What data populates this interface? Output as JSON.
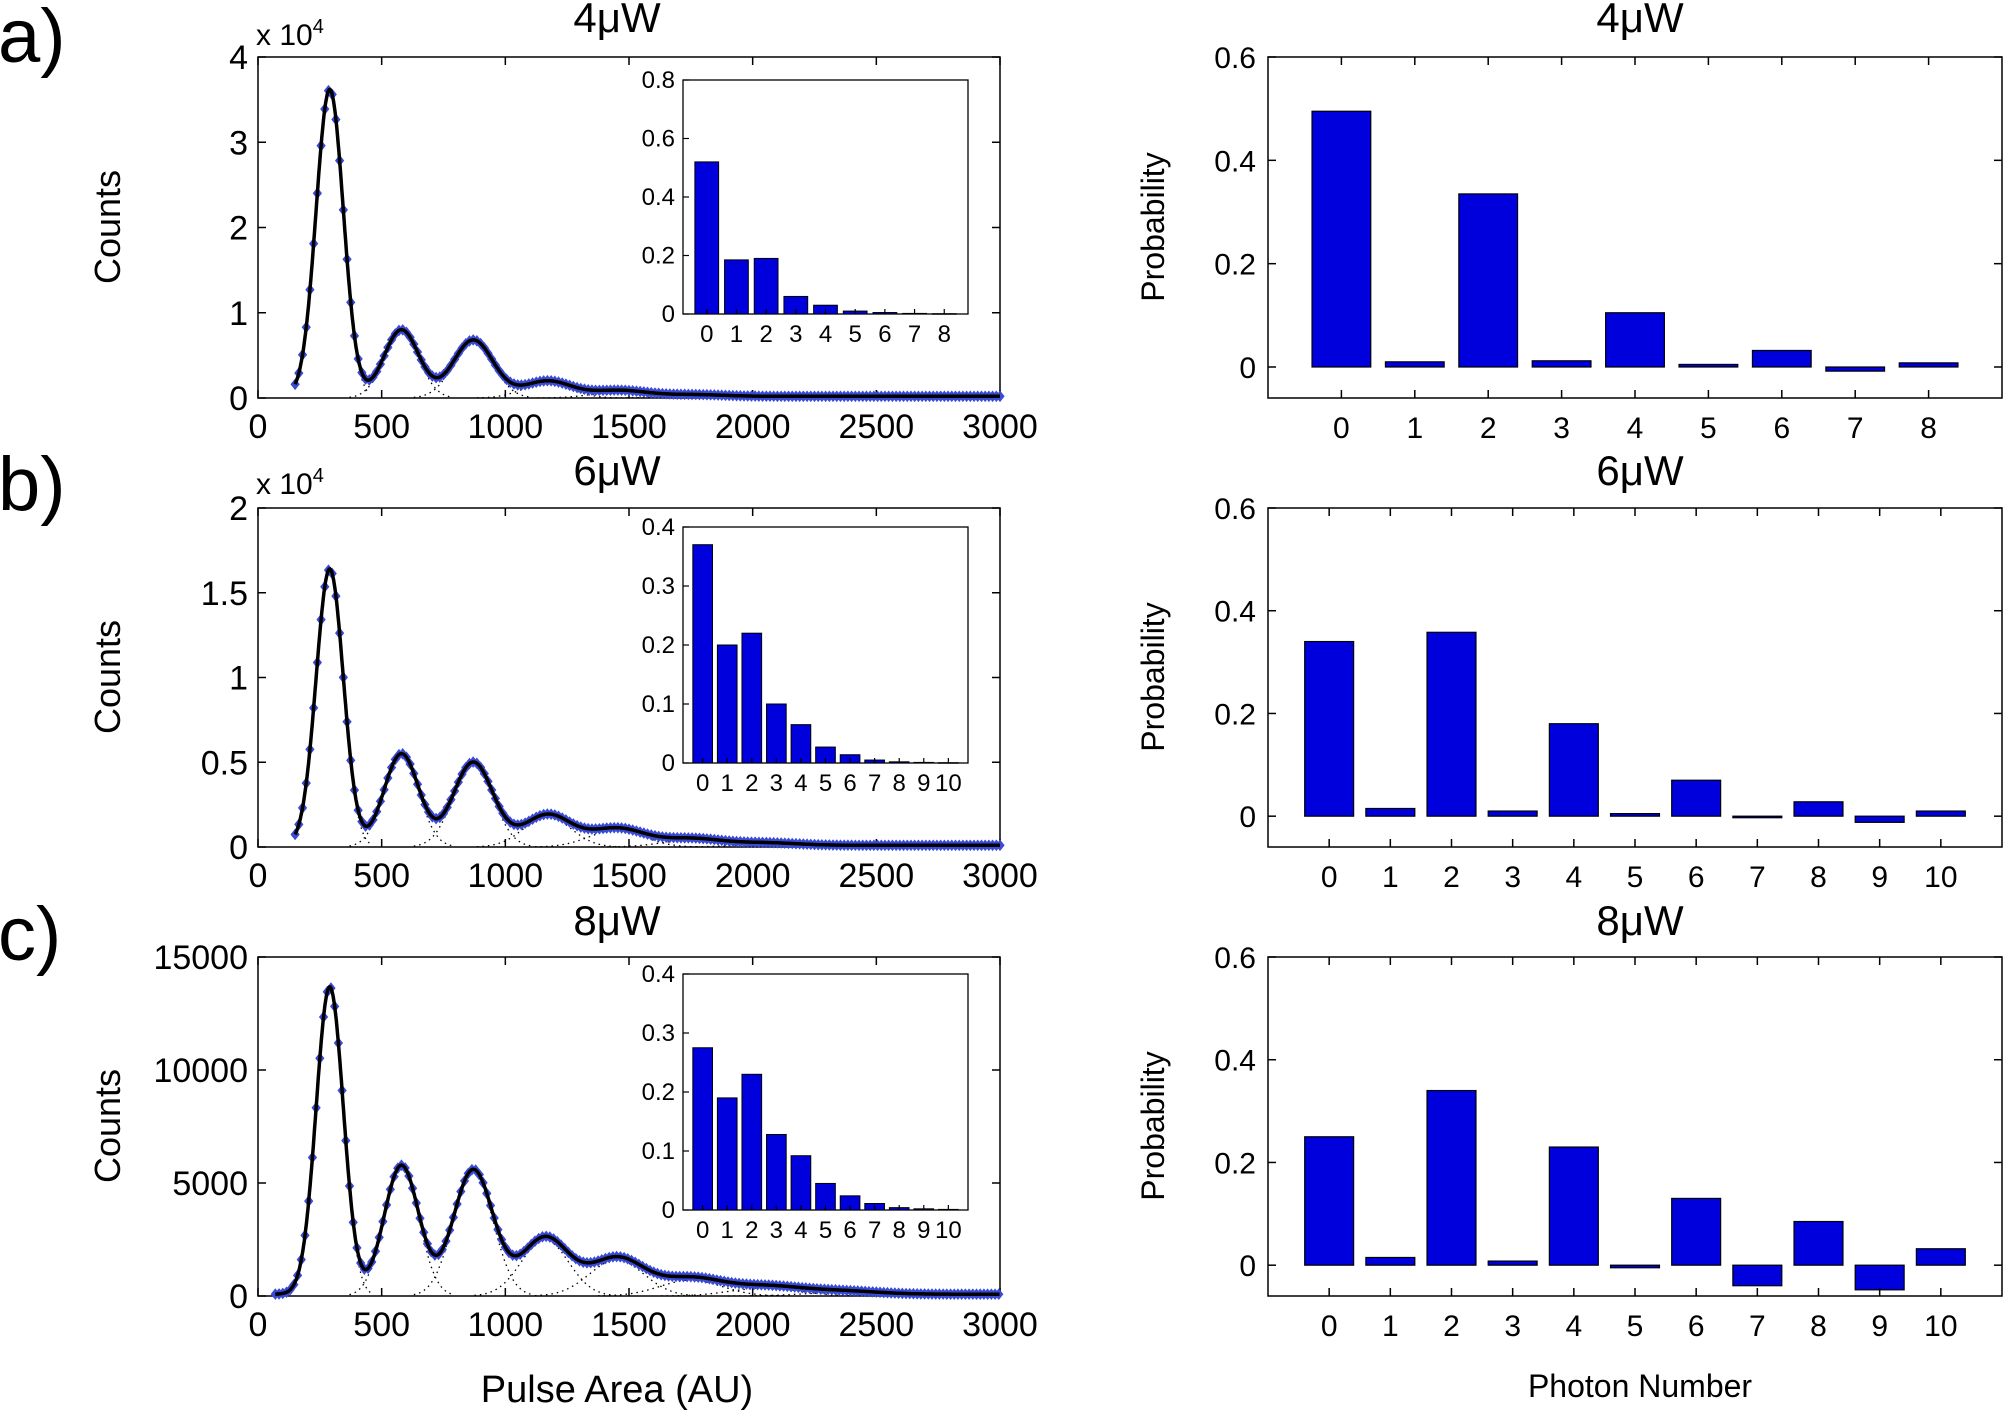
{
  "colors": {
    "bar": "#0000dd",
    "marker": "#3a4bd6",
    "fit_line": "#000000",
    "axis": "#000000"
  },
  "figure": {
    "panel_labels": [
      "a)",
      "b)",
      "c)"
    ],
    "left_xlabel": "Pulse Area (AU)",
    "left_ylabel": "Counts",
    "right_xlabel": "Photon Number",
    "right_ylabel": "Probability"
  },
  "chart_data": [
    {
      "id": "a_hist",
      "type": "line",
      "title": "4μW",
      "xlabel": "",
      "ylabel": "Counts",
      "exponent_label": "x 10",
      "exponent_power": "4",
      "xlim": [
        0,
        3000
      ],
      "ylim": [
        0,
        4
      ],
      "xticks": [
        0,
        500,
        1000,
        1500,
        2000,
        2500,
        3000
      ],
      "yticks": [
        0,
        1,
        2,
        3,
        4
      ],
      "x_start": 150,
      "peaks": [
        {
          "center": 290,
          "height": 3.6,
          "width": 55
        },
        {
          "center": 580,
          "height": 0.78,
          "width": 70
        },
        {
          "center": 870,
          "height": 0.66,
          "width": 80
        },
        {
          "center": 1170,
          "height": 0.18,
          "width": 95
        },
        {
          "center": 1460,
          "height": 0.07,
          "width": 110
        },
        {
          "center": 1760,
          "height": 0.02,
          "width": 120
        }
      ],
      "baseline": 0.02,
      "inset": {
        "type": "bar",
        "categories": [
          "0",
          "1",
          "2",
          "3",
          "4",
          "5",
          "6",
          "7",
          "8"
        ],
        "values": [
          0.52,
          0.185,
          0.19,
          0.06,
          0.03,
          0.01,
          0.005,
          0.002,
          0.001
        ],
        "ylim": [
          0,
          0.8
        ],
        "yticks": [
          "0",
          "0.2",
          "0.4",
          "0.6",
          "0.8"
        ]
      }
    },
    {
      "id": "a_prob",
      "type": "bar",
      "title": "4μW",
      "xlabel": "",
      "ylabel": "Probability",
      "categories": [
        "0",
        "1",
        "2",
        "3",
        "4",
        "5",
        "6",
        "7",
        "8"
      ],
      "values": [
        0.495,
        0.01,
        0.335,
        0.012,
        0.105,
        0.005,
        0.032,
        -0.008,
        0.008
      ],
      "ylim": [
        -0.06,
        0.6
      ],
      "yticks": [
        "0",
        "0.2",
        "0.4",
        "0.6"
      ]
    },
    {
      "id": "b_hist",
      "type": "line",
      "title": "6μW",
      "xlabel": "",
      "ylabel": "Counts",
      "exponent_label": "x 10",
      "exponent_power": "4",
      "xlim": [
        0,
        3000
      ],
      "ylim": [
        0,
        2
      ],
      "xticks": [
        0,
        500,
        1000,
        1500,
        2000,
        2500,
        3000
      ],
      "yticks": [
        0,
        0.5,
        1,
        1.5,
        2
      ],
      "ytick_labels": [
        "0",
        "0.5",
        "1",
        "1.5",
        "2"
      ],
      "x_start": 150,
      "peaks": [
        {
          "center": 290,
          "height": 1.63,
          "width": 55
        },
        {
          "center": 580,
          "height": 0.54,
          "width": 70
        },
        {
          "center": 870,
          "height": 0.49,
          "width": 80
        },
        {
          "center": 1170,
          "height": 0.18,
          "width": 95
        },
        {
          "center": 1450,
          "height": 0.1,
          "width": 110
        },
        {
          "center": 1750,
          "height": 0.04,
          "width": 120
        },
        {
          "center": 2050,
          "height": 0.015,
          "width": 130
        }
      ],
      "baseline": 0.01,
      "inset": {
        "type": "bar",
        "categories": [
          "0",
          "1",
          "2",
          "3",
          "4",
          "5",
          "6",
          "7",
          "8",
          "9",
          "10"
        ],
        "values": [
          0.37,
          0.2,
          0.22,
          0.1,
          0.065,
          0.027,
          0.014,
          0.005,
          0.002,
          0.001,
          0.0005
        ],
        "ylim": [
          0,
          0.4
        ],
        "yticks": [
          "0",
          "0.1",
          "0.2",
          "0.3",
          "0.4"
        ]
      }
    },
    {
      "id": "b_prob",
      "type": "bar",
      "title": "6μW",
      "xlabel": "",
      "ylabel": "Probability",
      "categories": [
        "0",
        "1",
        "2",
        "3",
        "4",
        "5",
        "6",
        "7",
        "8",
        "9",
        "10"
      ],
      "values": [
        0.34,
        0.015,
        0.358,
        0.01,
        0.18,
        0.005,
        0.07,
        -0.003,
        0.028,
        -0.012,
        0.01
      ],
      "ylim": [
        -0.06,
        0.6
      ],
      "yticks": [
        "0",
        "0.2",
        "0.4",
        "0.6"
      ]
    },
    {
      "id": "c_hist",
      "type": "line",
      "title": "8μW",
      "xlabel": "Pulse Area (AU)",
      "ylabel": "Counts",
      "xlim": [
        0,
        3000
      ],
      "ylim": [
        0,
        15000
      ],
      "xticks": [
        0,
        500,
        1000,
        1500,
        2000,
        2500,
        3000
      ],
      "yticks": [
        0,
        5000,
        10000,
        15000
      ],
      "x_start": 70,
      "peaks": [
        {
          "center": 290,
          "height": 13600,
          "width": 55
        },
        {
          "center": 580,
          "height": 5700,
          "width": 70
        },
        {
          "center": 870,
          "height": 5500,
          "width": 80
        },
        {
          "center": 1160,
          "height": 2500,
          "width": 95
        },
        {
          "center": 1450,
          "height": 1600,
          "width": 110
        },
        {
          "center": 1750,
          "height": 700,
          "width": 125
        },
        {
          "center": 2050,
          "height": 350,
          "width": 140
        },
        {
          "center": 2350,
          "height": 150,
          "width": 150
        }
      ],
      "baseline": 80,
      "inset": {
        "type": "bar",
        "categories": [
          "0",
          "1",
          "2",
          "3",
          "4",
          "5",
          "6",
          "7",
          "8",
          "9",
          "10"
        ],
        "values": [
          0.275,
          0.19,
          0.23,
          0.128,
          0.092,
          0.045,
          0.024,
          0.011,
          0.004,
          0.002,
          0.001
        ],
        "ylim": [
          0,
          0.4
        ],
        "yticks": [
          "0",
          "0.1",
          "0.2",
          "0.3",
          "0.4"
        ]
      }
    },
    {
      "id": "c_prob",
      "type": "bar",
      "title": "8μW",
      "xlabel": "Photon Number",
      "ylabel": "Probability",
      "categories": [
        "0",
        "1",
        "2",
        "3",
        "4",
        "5",
        "6",
        "7",
        "8",
        "9",
        "10"
      ],
      "values": [
        0.25,
        0.015,
        0.34,
        0.008,
        0.23,
        -0.005,
        0.13,
        -0.04,
        0.085,
        -0.048,
        0.032
      ],
      "ylim": [
        -0.06,
        0.6
      ],
      "yticks": [
        "0",
        "0.2",
        "0.4",
        "0.6"
      ]
    }
  ]
}
